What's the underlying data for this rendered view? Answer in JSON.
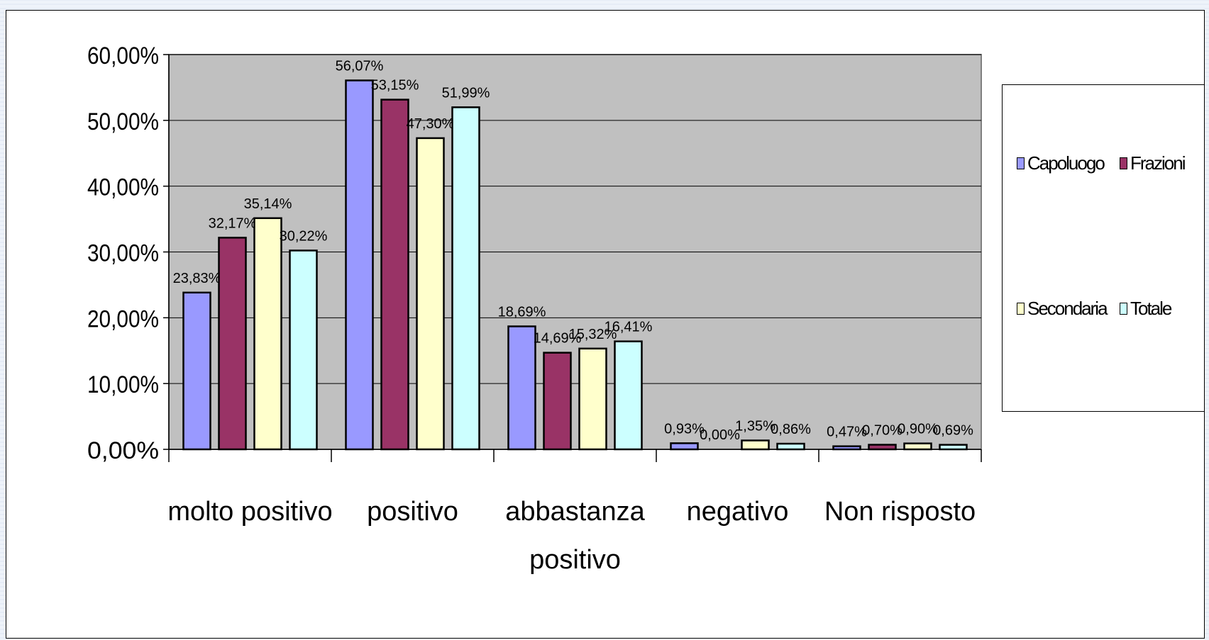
{
  "chart_data": {
    "type": "bar",
    "categories": [
      "molto positivo",
      "positivo",
      "abbastanza positivo",
      "negativo",
      "Non risposto"
    ],
    "series": [
      {
        "name": "Capoluogo",
        "color": "#9999ff",
        "values": [
          23.83,
          56.07,
          18.69,
          0.93,
          0.47
        ],
        "labels": [
          "23,83%",
          "56,07%",
          "18,69%",
          "0,93%",
          "0,47%"
        ]
      },
      {
        "name": "Frazioni",
        "color": "#993366",
        "values": [
          32.17,
          53.15,
          14.69,
          0.0,
          0.7
        ],
        "labels": [
          "32,17%",
          "53,15%",
          "14,69%",
          "0,00%",
          "0,70%"
        ]
      },
      {
        "name": "Secondaria",
        "color": "#ffffcc",
        "values": [
          35.14,
          47.3,
          15.32,
          1.35,
          0.9
        ],
        "labels": [
          "35,14%",
          "47,30%",
          "15,32%",
          "1,35%",
          "0,90%"
        ]
      },
      {
        "name": "Totale",
        "color": "#ccffff",
        "values": [
          30.22,
          51.99,
          16.41,
          0.86,
          0.69
        ],
        "labels": [
          "30,22%",
          "51,99%",
          "16,41%",
          "0,86%",
          "0,69%"
        ]
      }
    ],
    "yticks": [
      "0,00%",
      "10,00%",
      "20,00%",
      "30,00%",
      "40,00%",
      "50,00%",
      "60,00%"
    ],
    "ylim": [
      0,
      60
    ],
    "grid": true,
    "plot_background": "#c0c0c0",
    "legend_position": "right"
  }
}
